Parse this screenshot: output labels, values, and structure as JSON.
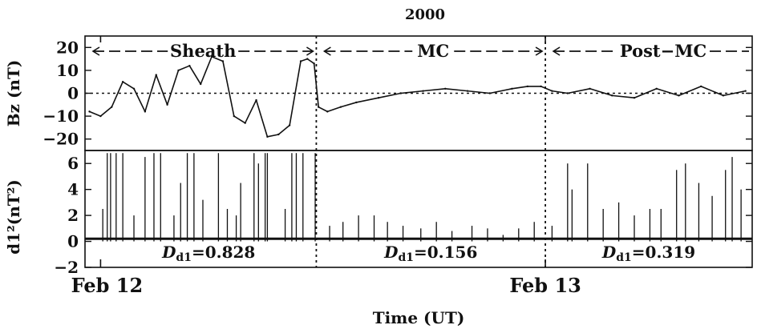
{
  "chart_data": [
    {
      "type": "line",
      "title": "2000",
      "ylabel": "Bz (nT)",
      "ylim": [
        -25,
        25
      ],
      "yticks": [
        20,
        10,
        0,
        -10,
        -20
      ],
      "ytick_labels": [
        "20",
        "10",
        "0",
        "−10",
        "−20"
      ],
      "x_unit": "hours after 2000-02-12 00:00 UT",
      "xlim": [
        -0.7,
        29.3
      ],
      "zero_line": true,
      "regions": [
        {
          "label": "Sheath",
          "start": -0.7,
          "end": 9.7
        },
        {
          "label": "MC",
          "start": 9.7,
          "end": 20.0
        },
        {
          "label": "Post−MC",
          "start": 20.0,
          "end": 29.3
        }
      ],
      "boundaries": [
        9.7,
        20.0
      ],
      "series": [
        {
          "x": [
            -0.5,
            0.0,
            0.5,
            1.0,
            1.5,
            2.0,
            2.5,
            3.0,
            3.5,
            4.0,
            4.5,
            5.0,
            5.5,
            6.0,
            6.5,
            7.0,
            7.5,
            8.0,
            8.5,
            9.0,
            9.3,
            9.6,
            9.8,
            10.2,
            10.8,
            11.5,
            12.5,
            13.5,
            14.5,
            15.5,
            16.5,
            17.5,
            18.5,
            19.2,
            19.8,
            20.3,
            21.0,
            22.0,
            23.0,
            24.0,
            25.0,
            26.0,
            27.0,
            28.0,
            29.0
          ],
          "y": [
            -8,
            -10,
            -6,
            5,
            2,
            -8,
            8,
            -5,
            10,
            12,
            4,
            16,
            14,
            -10,
            -13,
            -3,
            -19,
            -18,
            -14,
            14,
            15,
            13,
            -6,
            -8,
            -6,
            -4,
            -2,
            0,
            1,
            2,
            1,
            0,
            2,
            3,
            3,
            1,
            0,
            2,
            -1,
            -2,
            2,
            -1,
            3,
            -1,
            1
          ]
        }
      ]
    },
    {
      "type": "bar",
      "ylabel": "d1²(nT²)",
      "ylim": [
        -2,
        7
      ],
      "yticks": [
        6,
        4,
        2,
        0,
        -2
      ],
      "ytick_labels": [
        "6",
        "4",
        "2",
        "0",
        "−2"
      ],
      "x_unit": "hours after 2000-02-12 00:00 UT",
      "xlim": [
        -0.7,
        29.3
      ],
      "regions": [
        {
          "label_symbol": "D",
          "label_sub": "d1",
          "label_value": "=0.828",
          "start": -0.7,
          "end": 9.7
        },
        {
          "label_symbol": "D",
          "label_sub": "d1",
          "label_value": "=0.156",
          "start": 9.7,
          "end": 20.0
        },
        {
          "label_symbol": "D",
          "label_sub": "d1",
          "label_value": "=0.319",
          "start": 20.0,
          "end": 29.3
        }
      ],
      "spikes": {
        "x": [
          0.1,
          0.3,
          0.45,
          0.7,
          1.0,
          1.5,
          2.0,
          2.4,
          2.7,
          3.3,
          3.6,
          3.9,
          4.2,
          4.6,
          5.3,
          5.7,
          6.1,
          6.3,
          6.9,
          7.1,
          7.4,
          7.5,
          8.3,
          8.6,
          8.8,
          9.1,
          9.65,
          10.3,
          10.9,
          11.6,
          12.3,
          12.9,
          13.6,
          14.4,
          15.1,
          15.8,
          16.7,
          17.4,
          18.1,
          18.8,
          19.5,
          20.3,
          21.0,
          21.2,
          21.9,
          22.6,
          23.3,
          24.0,
          24.7,
          25.2,
          25.9,
          26.3,
          26.9,
          27.5,
          28.1,
          28.4,
          28.8
        ],
        "values": [
          2.5,
          6.8,
          6.8,
          6.8,
          6.8,
          2.0,
          6.5,
          6.8,
          6.8,
          2.0,
          4.5,
          6.8,
          6.8,
          3.2,
          6.8,
          2.5,
          2.0,
          4.5,
          6.8,
          6.0,
          6.8,
          6.8,
          2.5,
          6.8,
          6.8,
          6.8,
          6.8,
          1.2,
          1.5,
          2.0,
          2.0,
          1.5,
          1.2,
          1.0,
          1.5,
          0.8,
          1.2,
          1.0,
          0.5,
          1.0,
          1.5,
          1.2,
          6.0,
          4.0,
          6.0,
          2.5,
          3.0,
          2.0,
          2.5,
          2.5,
          5.5,
          6.0,
          4.5,
          3.5,
          5.5,
          6.5,
          4.0
        ]
      }
    }
  ],
  "x_axis": {
    "tick_labels": [
      {
        "label": "Feb 12",
        "x": 0
      },
      {
        "label": "Feb 13",
        "x": 20.0
      }
    ],
    "xlabel": "Time (UT)"
  },
  "top_labels": {
    "sheath": "Sheath",
    "mc": "MC",
    "post_mc": "Post−MC"
  }
}
